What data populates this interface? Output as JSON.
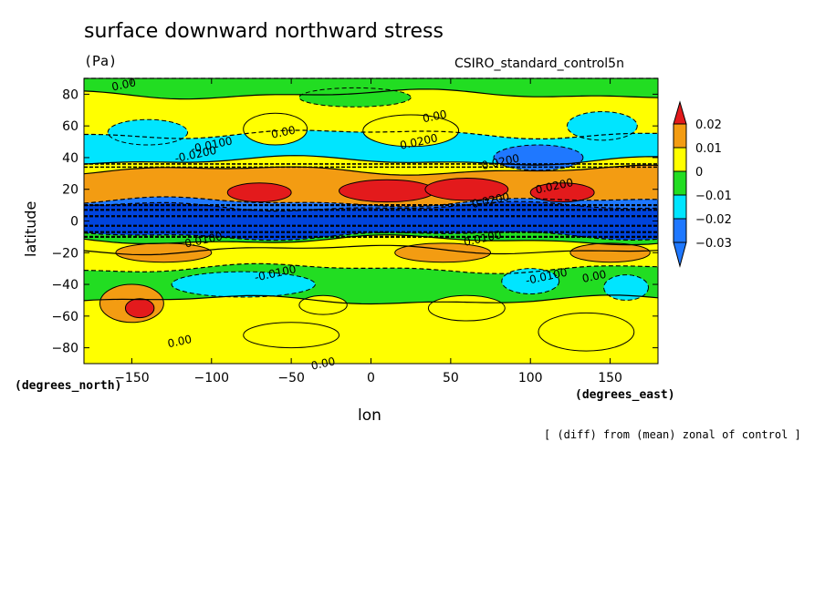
{
  "header": {
    "title": "surface downward northward stress",
    "units": "(Pa)",
    "run": "CSIRO_standard_control5n"
  },
  "axes": {
    "ylabel": "latitude",
    "xlabel": "lon",
    "y_units": "(degrees_north)",
    "x_units": "(degrees_east)"
  },
  "note": "[ (diff) from (mean) zonal of control ]",
  "colors": {
    "red": "#e31a1c",
    "orange": "#f39c12",
    "yellow": "#ffff00",
    "green": "#22dd22",
    "cyan": "#00e5ff",
    "blue": "#1f78ff",
    "deepblue": "#0055dd"
  },
  "chart_data": {
    "type": "heatmap",
    "title": "surface downward northward stress",
    "subtitle": "(Pa)",
    "xlabel": "lon",
    "ylabel": "latitude",
    "xlim": [
      -180,
      180
    ],
    "ylim": [
      -90,
      90
    ],
    "x_ticks": [
      -150,
      -100,
      -50,
      0,
      50,
      100,
      150
    ],
    "x_tick_labels": [
      "−150",
      "−100",
      "−50",
      "0",
      "50",
      "100",
      "150"
    ],
    "y_ticks": [
      -80,
      -60,
      -40,
      -20,
      0,
      20,
      40,
      60,
      80
    ],
    "y_tick_labels": [
      "−80",
      "−60",
      "−40",
      "−20",
      "0",
      "20",
      "40",
      "60",
      "80"
    ],
    "colorbar": {
      "levels": [
        -0.03,
        -0.02,
        -0.01,
        0,
        0.01,
        0.02
      ],
      "labels": [
        "−0.03",
        "−0.02",
        "−0.01",
        "0",
        "0.01",
        "0.02"
      ],
      "colors": [
        "#1f78ff",
        "#00e5ff",
        "#22dd22",
        "#ffff00",
        "#f39c12",
        "#e31a1c"
      ]
    },
    "zonal_bands": [
      {
        "lat_from": 80,
        "lat_to": 90,
        "value": -0.005
      },
      {
        "lat_from": 55,
        "lat_to": 80,
        "value": 0.002
      },
      {
        "lat_from": 38,
        "lat_to": 55,
        "value": -0.02
      },
      {
        "lat_from": 32,
        "lat_to": 38,
        "value": 0.005
      },
      {
        "lat_from": 12,
        "lat_to": 32,
        "value": 0.015
      },
      {
        "lat_from": 9,
        "lat_to": 12,
        "value": -0.03
      },
      {
        "lat_from": -9,
        "lat_to": 9,
        "value": -0.04
      },
      {
        "lat_from": -12,
        "lat_to": -9,
        "value": -0.005
      },
      {
        "lat_from": -18,
        "lat_to": -12,
        "value": 0.008
      },
      {
        "lat_from": -30,
        "lat_to": -18,
        "value": 0.004
      },
      {
        "lat_from": -50,
        "lat_to": -30,
        "value": -0.008
      },
      {
        "lat_from": -90,
        "lat_to": -50,
        "value": 0.001
      }
    ],
    "contour_labels": [
      {
        "text": "0.00",
        "lon": -155,
        "lat": 86
      },
      {
        "text": "0.00",
        "lon": -55,
        "lat": 56
      },
      {
        "text": "0.00",
        "lon": 40,
        "lat": 66
      },
      {
        "text": "-0.0100",
        "lon": -100,
        "lat": 48
      },
      {
        "text": "-0.0200",
        "lon": -110,
        "lat": 42
      },
      {
        "text": "0.0200",
        "lon": 30,
        "lat": 50
      },
      {
        "text": "-0.0200",
        "lon": 80,
        "lat": 37
      },
      {
        "text": "0.0200",
        "lon": 115,
        "lat": 22
      },
      {
        "text": "0.0200",
        "lon": 75,
        "lat": 13
      },
      {
        "text": "0.0100",
        "lon": 70,
        "lat": -11
      },
      {
        "text": "0.0100",
        "lon": -105,
        "lat": -12
      },
      {
        "text": "-0.0100",
        "lon": -60,
        "lat": -33
      },
      {
        "text": "-0.0100",
        "lon": 110,
        "lat": -35
      },
      {
        "text": "0.00",
        "lon": 140,
        "lat": -35
      },
      {
        "text": "0.00",
        "lon": -120,
        "lat": -76
      },
      {
        "text": "0.00",
        "lon": -30,
        "lat": -90
      }
    ]
  }
}
